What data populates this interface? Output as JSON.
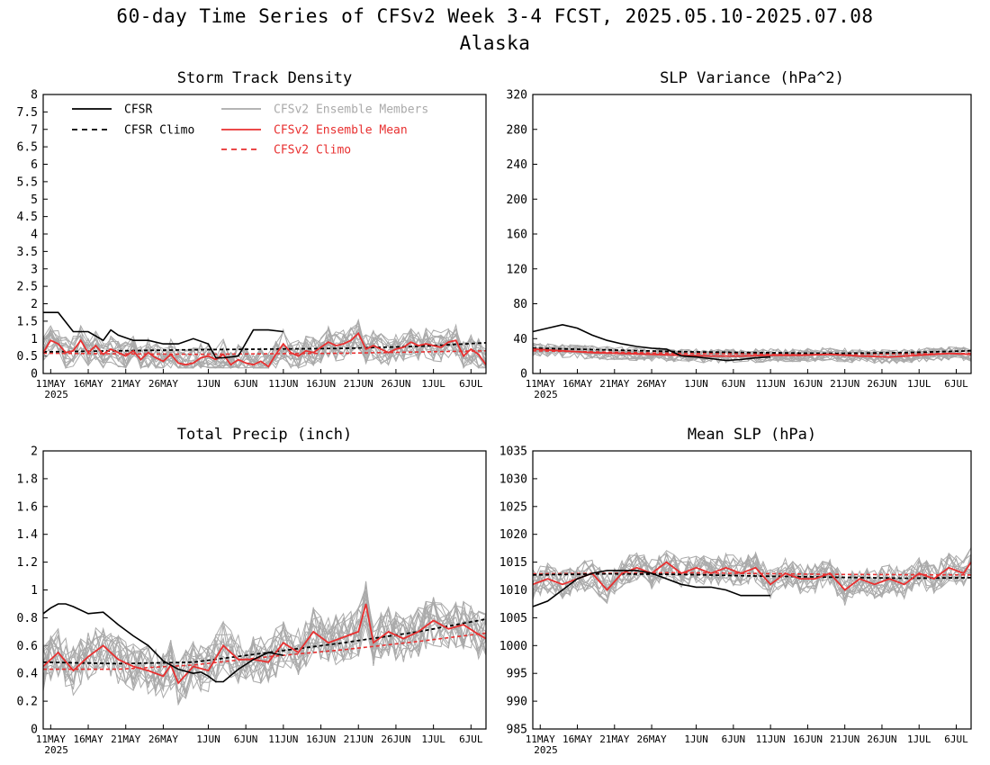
{
  "page": {
    "title": "60-day Time Series of CFSv2 Week 3-4 FCST, 2025.05.10-2025.07.08",
    "subtitle": "Alaska"
  },
  "x_axis": {
    "tick_labels": [
      "11MAY",
      "16MAY",
      "21MAY",
      "26MAY",
      "1JUN",
      "6JUN",
      "11JUN",
      "16JUN",
      "21JUN",
      "26JUN",
      "1JUL",
      "6JUL"
    ],
    "tick_days": [
      1,
      6,
      11,
      16,
      22,
      27,
      32,
      37,
      42,
      47,
      52,
      57
    ],
    "year_label": "2025",
    "day_range": [
      0,
      59
    ]
  },
  "legend": [
    {
      "label": "CFSR",
      "color": "#000000",
      "dashed": false
    },
    {
      "label": "CFSR Climo",
      "color": "#000000",
      "dashed": true
    },
    {
      "label": "CFSv2 Ensemble Members",
      "color": "#aaaaaa",
      "dashed": false
    },
    {
      "label": "CFSv2 Ensemble Mean",
      "color": "#e83030",
      "dashed": false
    },
    {
      "label": "CFSv2 Climo",
      "color": "#e83030",
      "dashed": true
    }
  ],
  "colors": {
    "cfsr": "#000000",
    "members": "#aaaaaa",
    "mean": "#e83030",
    "climo_model": "#e83030"
  },
  "chart_data": [
    {
      "type": "line",
      "title": "Storm Track Density",
      "ylim": [
        0,
        8
      ],
      "yticks": [
        0,
        0.5,
        1,
        1.5,
        2,
        2.5,
        3,
        3.5,
        4,
        4.5,
        5,
        5.5,
        6,
        6.5,
        7,
        7.5,
        8
      ],
      "ytick_labels": [
        "0",
        "0.5",
        "1",
        "1.5",
        "2",
        "2.5",
        "3",
        "3.5",
        "4",
        "4.5",
        "5",
        "5.5",
        "6",
        "6.5",
        "7",
        "7.5",
        "8"
      ],
      "members_amplitude": 0.45,
      "series": [
        {
          "name": "CFSR",
          "x": [
            0,
            2,
            4,
            6,
            8,
            9,
            10,
            12,
            14,
            16,
            18,
            20,
            22,
            23,
            24,
            26,
            28,
            30,
            32
          ],
          "values": [
            1.75,
            1.75,
            1.2,
            1.2,
            0.95,
            1.25,
            1.1,
            0.95,
            0.95,
            0.85,
            0.85,
            1.0,
            0.85,
            0.45,
            0.45,
            0.5,
            1.25,
            1.25,
            1.2
          ]
        },
        {
          "name": "CFSR Climo",
          "x": [
            0,
            10,
            20,
            30,
            40,
            50,
            59
          ],
          "values": [
            0.62,
            0.65,
            0.68,
            0.7,
            0.72,
            0.78,
            0.88
          ]
        },
        {
          "name": "CFSv2 Ensemble Mean",
          "x": [
            0,
            1,
            2,
            3,
            4,
            5,
            6,
            7,
            8,
            9,
            10,
            11,
            12,
            13,
            14,
            15,
            16,
            17,
            18,
            19,
            20,
            21,
            22,
            23,
            24,
            25,
            26,
            27,
            28,
            29,
            30,
            31,
            32,
            33,
            34,
            35,
            36,
            37,
            38,
            39,
            40,
            41,
            42,
            43,
            44,
            45,
            46,
            47,
            48,
            49,
            50,
            51,
            52,
            53,
            54,
            55,
            56,
            57,
            58,
            59
          ],
          "values": [
            0.6,
            0.95,
            0.85,
            0.6,
            0.65,
            0.95,
            0.6,
            0.8,
            0.55,
            0.7,
            0.6,
            0.5,
            0.65,
            0.4,
            0.6,
            0.45,
            0.35,
            0.55,
            0.3,
            0.25,
            0.3,
            0.45,
            0.5,
            0.4,
            0.55,
            0.25,
            0.4,
            0.3,
            0.25,
            0.35,
            0.2,
            0.55,
            0.85,
            0.6,
            0.5,
            0.65,
            0.6,
            0.75,
            0.9,
            0.8,
            0.85,
            0.95,
            1.15,
            0.7,
            0.8,
            0.7,
            0.6,
            0.7,
            0.75,
            0.9,
            0.8,
            0.85,
            0.8,
            0.75,
            0.9,
            0.95,
            0.5,
            0.7,
            0.55,
            0.25
          ]
        },
        {
          "name": "CFSv2 Climo",
          "x": [
            0,
            20,
            40,
            59
          ],
          "values": [
            0.58,
            0.55,
            0.58,
            0.65
          ]
        }
      ]
    },
    {
      "type": "line",
      "title": "SLP Variance (hPa^2)",
      "ylim": [
        0,
        320
      ],
      "yticks": [
        0,
        40,
        80,
        120,
        160,
        200,
        240,
        280,
        320
      ],
      "ytick_labels": [
        "0",
        "40",
        "80",
        "120",
        "160",
        "200",
        "240",
        "280",
        "320"
      ],
      "members_amplitude": 8,
      "series": [
        {
          "name": "CFSR",
          "x": [
            0,
            2,
            4,
            6,
            8,
            10,
            12,
            14,
            16,
            18,
            20,
            22,
            24,
            26,
            28,
            30,
            32
          ],
          "values": [
            48,
            52,
            56,
            52,
            44,
            38,
            34,
            31,
            29,
            28,
            20,
            19,
            17,
            15,
            16,
            18,
            19
          ]
        },
        {
          "name": "CFSR Climo",
          "x": [
            0,
            10,
            20,
            30,
            40,
            50,
            59
          ],
          "values": [
            29,
            27,
            25,
            24,
            23,
            24,
            26
          ]
        },
        {
          "name": "CFSv2 Ensemble Mean",
          "x": [
            0,
            4,
            8,
            12,
            16,
            20,
            24,
            28,
            32,
            36,
            40,
            44,
            48,
            52,
            56,
            59
          ],
          "values": [
            28,
            26,
            24,
            23,
            22,
            21,
            20,
            20,
            21,
            21,
            22,
            20,
            19,
            21,
            23,
            22
          ]
        },
        {
          "name": "CFSv2 Climo",
          "x": [
            0,
            20,
            40,
            59
          ],
          "values": [
            26,
            23,
            22,
            23
          ]
        }
      ]
    },
    {
      "type": "line",
      "title": "Total Precip (inch)",
      "ylim": [
        0,
        2
      ],
      "yticks": [
        0,
        0.2,
        0.4,
        0.6,
        0.8,
        1,
        1.2,
        1.4,
        1.6,
        1.8,
        2
      ],
      "ytick_labels": [
        "0",
        "0.2",
        "0.4",
        "0.6",
        "0.8",
        "1",
        "1.2",
        "1.4",
        "1.6",
        "1.8",
        "2"
      ],
      "members_amplitude": 0.18,
      "series": [
        {
          "name": "CFSR",
          "x": [
            0,
            1,
            2,
            3,
            4,
            6,
            8,
            10,
            12,
            14,
            16,
            18,
            20,
            21,
            22,
            23,
            24,
            26,
            28,
            30,
            32
          ],
          "values": [
            0.83,
            0.87,
            0.9,
            0.9,
            0.88,
            0.83,
            0.84,
            0.75,
            0.67,
            0.6,
            0.49,
            0.43,
            0.4,
            0.41,
            0.38,
            0.34,
            0.34,
            0.43,
            0.5,
            0.55,
            0.53
          ]
        },
        {
          "name": "CFSR Climo",
          "x": [
            0,
            10,
            20,
            30,
            40,
            50,
            59
          ],
          "values": [
            0.48,
            0.47,
            0.48,
            0.55,
            0.62,
            0.7,
            0.79
          ]
        },
        {
          "name": "CFSv2 Ensemble Mean",
          "x": [
            0,
            2,
            4,
            6,
            8,
            10,
            12,
            14,
            16,
            17,
            18,
            20,
            22,
            24,
            26,
            28,
            30,
            32,
            34,
            36,
            38,
            40,
            42,
            43,
            44,
            46,
            48,
            50,
            52,
            54,
            56,
            58,
            59
          ],
          "values": [
            0.45,
            0.55,
            0.42,
            0.52,
            0.6,
            0.5,
            0.45,
            0.42,
            0.38,
            0.46,
            0.33,
            0.45,
            0.42,
            0.6,
            0.5,
            0.5,
            0.48,
            0.62,
            0.55,
            0.7,
            0.62,
            0.66,
            0.7,
            0.9,
            0.62,
            0.7,
            0.65,
            0.7,
            0.78,
            0.72,
            0.75,
            0.68,
            0.65
          ]
        },
        {
          "name": "CFSv2 Climo",
          "x": [
            0,
            10,
            20,
            30,
            40,
            50,
            59
          ],
          "values": [
            0.43,
            0.43,
            0.46,
            0.52,
            0.57,
            0.63,
            0.69
          ]
        }
      ]
    },
    {
      "type": "line",
      "title": "Mean SLP (hPa)",
      "ylim": [
        985,
        1035
      ],
      "yticks": [
        985,
        990,
        995,
        1000,
        1005,
        1010,
        1015,
        1020,
        1025,
        1030,
        1035
      ],
      "ytick_labels": [
        "985",
        "990",
        "995",
        "1000",
        "1005",
        "1010",
        "1015",
        "1020",
        "1025",
        "1030",
        "1035"
      ],
      "members_amplitude": 2.8,
      "series": [
        {
          "name": "CFSR",
          "x": [
            0,
            2,
            4,
            6,
            8,
            10,
            12,
            14,
            16,
            18,
            20,
            22,
            24,
            26,
            28,
            30,
            32
          ],
          "values": [
            1007,
            1008,
            1010,
            1012,
            1013,
            1013.5,
            1013.5,
            1013.5,
            1013,
            1012,
            1011,
            1010.5,
            1010.5,
            1010,
            1009,
            1009,
            1009
          ]
        },
        {
          "name": "CFSR Climo",
          "x": [
            0,
            10,
            20,
            30,
            40,
            50,
            59
          ],
          "values": [
            1012.7,
            1012.9,
            1012.8,
            1012.5,
            1012.3,
            1012.1,
            1012.2
          ]
        },
        {
          "name": "CFSv2 Ensemble Mean",
          "x": [
            0,
            2,
            4,
            6,
            8,
            10,
            12,
            14,
            16,
            18,
            20,
            22,
            24,
            26,
            28,
            30,
            32,
            34,
            36,
            38,
            40,
            42,
            44,
            46,
            48,
            50,
            52,
            54,
            56,
            58,
            59
          ],
          "values": [
            1011,
            1012,
            1011,
            1012,
            1013,
            1010,
            1013,
            1014,
            1013,
            1015,
            1013,
            1014,
            1013,
            1014,
            1013,
            1014,
            1011,
            1013,
            1012,
            1012,
            1013,
            1010,
            1012,
            1011,
            1012,
            1011,
            1013,
            1012,
            1014,
            1013,
            1015
          ]
        },
        {
          "name": "CFSv2 Climo",
          "x": [
            0,
            20,
            40,
            59
          ],
          "values": [
            1012.9,
            1013.1,
            1012.8,
            1012.7
          ]
        }
      ]
    }
  ]
}
